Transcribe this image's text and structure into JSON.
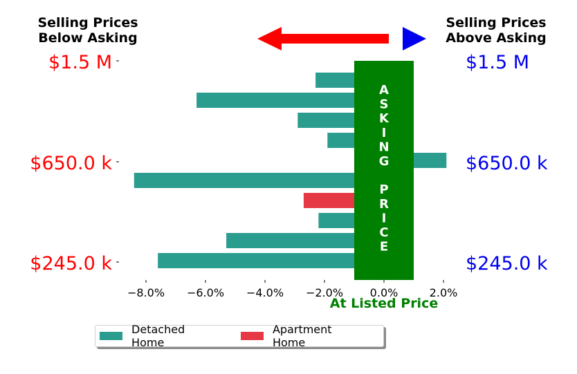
{
  "header": {
    "left_line1": "Selling Prices",
    "left_line2": "Below Asking",
    "right_line1": "Selling Prices",
    "right_line2": "Above Asking"
  },
  "colors": {
    "below": "#ff0000",
    "above": "#0000ee",
    "asking": "#008000",
    "detached": "#2a9d8f",
    "apartment": "#e63946"
  },
  "price_labels": {
    "left": [
      "$1.5 M",
      "$650.0 k",
      "$245.0 k"
    ],
    "right": [
      "$1.5 M",
      "$650.0 k",
      "$245.0 k"
    ]
  },
  "asking_band": {
    "letters": [
      "A",
      "S",
      "K",
      "I",
      "N",
      "G",
      "",
      "P",
      "R",
      "I",
      "C",
      "E"
    ],
    "xlabel": "At Listed Price"
  },
  "legend": {
    "detached_label": "Detached Home",
    "apartment_label": "Apartment Home"
  },
  "chart_data": {
    "type": "bar",
    "orientation": "horizontal",
    "xlim": [
      -9.0,
      2.5
    ],
    "band_range": [
      -1.0,
      1.0
    ],
    "xticks": [
      -8.0,
      -6.0,
      -4.0,
      -2.0,
      0.0,
      2.0
    ],
    "xtick_labels": [
      "−8.0%",
      "−6.0%",
      "−4.0%",
      "−2.0%",
      "0.0%",
      "2.0%"
    ],
    "xlabel": "At Listed Price",
    "bars": [
      {
        "value": -2.3,
        "series": "Detached Home"
      },
      {
        "value": -6.3,
        "series": "Detached Home"
      },
      {
        "value": -2.9,
        "series": "Detached Home"
      },
      {
        "value": -1.9,
        "series": "Detached Home"
      },
      {
        "value": 2.1,
        "series": "Detached Home"
      },
      {
        "value": -8.4,
        "series": "Detached Home"
      },
      {
        "value": -2.7,
        "series": "Apartment Home"
      },
      {
        "value": -2.2,
        "series": "Detached Home"
      },
      {
        "value": -5.3,
        "series": "Detached Home"
      },
      {
        "value": -7.6,
        "series": "Detached Home"
      }
    ],
    "series": [
      {
        "name": "Detached Home"
      },
      {
        "name": "Apartment Home"
      }
    ]
  }
}
